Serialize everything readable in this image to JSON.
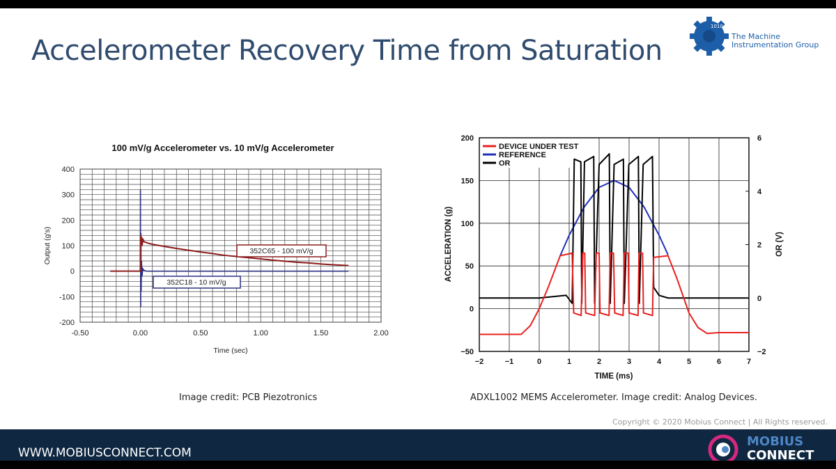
{
  "slide": {
    "title": "Accelerometer Recovery Time from Saturation",
    "logo_tmg": {
      "binary": "1010 01011",
      "line1": "The Machine",
      "line2": "Instrumentation Group"
    },
    "caption_left": "Image credit: PCB Piezotronics",
    "caption_right": "ADXL1002 MEMS Accelerometer. Image credit: Analog Devices.",
    "copyright": "Copyright © 2020 Mobius Connect | All Rights reserved.",
    "footer_url": "WWW.MOBIUSCONNECT.COM",
    "logo_mobius": {
      "line1": "MOBIUS",
      "line2": "CONNECT"
    },
    "colors": {
      "title": "#2f4b6e",
      "footer": "#0f2741",
      "mobius_ring": "#d6287f",
      "tmg_blue": "#1c5ea8"
    }
  },
  "chart_data": [
    {
      "type": "line",
      "title": "100 mV/g Accelerometer vs. 10 mV/g Accelerometer",
      "xlabel": "Time (sec)",
      "ylabel": "Output (g's)",
      "xlim": [
        -0.5,
        2.0
      ],
      "ylim": [
        -200,
        400
      ],
      "xticks": [
        "-0.50",
        "0.00",
        "0.50",
        "1.00",
        "1.50",
        "2.00"
      ],
      "yticks": [
        "400",
        "300",
        "200",
        "100",
        "0",
        "-100",
        "-200"
      ],
      "grid": true,
      "series": [
        {
          "name": "352C65 - 100 mV/g",
          "color": "#8b1a1a",
          "points": [
            [
              -0.25,
              0
            ],
            [
              0,
              0
            ],
            [
              0.003,
              140
            ],
            [
              0.006,
              95
            ],
            [
              0.01,
              135
            ],
            [
              0.015,
              100
            ],
            [
              0.02,
              128
            ],
            [
              0.03,
              115
            ],
            [
              0.05,
              112
            ],
            [
              0.1,
              105
            ],
            [
              0.2,
              97
            ],
            [
              0.3,
              89
            ],
            [
              0.4,
              82
            ],
            [
              0.5,
              75
            ],
            [
              0.6,
              69
            ],
            [
              0.7,
              62
            ],
            [
              0.85,
              55
            ],
            [
              1.0,
              48
            ],
            [
              1.1,
              43
            ],
            [
              1.2,
              39
            ],
            [
              1.3,
              35
            ],
            [
              1.4,
              32
            ],
            [
              1.5,
              28
            ],
            [
              1.6,
              25
            ],
            [
              1.73,
              22
            ]
          ]
        },
        {
          "name": "352C18 - 10 mV/g",
          "color": "#2a2f80",
          "points": [
            [
              0,
              0
            ],
            [
              0.001,
              320
            ],
            [
              0.003,
              -140
            ],
            [
              0.005,
              150
            ],
            [
              0.007,
              -80
            ],
            [
              0.01,
              40
            ],
            [
              0.015,
              -20
            ],
            [
              0.02,
              10
            ],
            [
              0.03,
              3
            ],
            [
              0.05,
              0
            ],
            [
              0.5,
              0
            ],
            [
              1.0,
              0
            ],
            [
              1.5,
              0
            ],
            [
              1.73,
              0
            ]
          ]
        }
      ]
    },
    {
      "type": "line",
      "xlabel": "TIME (ms)",
      "ylabel": "ACCELERATION (g)",
      "y2label": "OR (V)",
      "xlim": [
        -2,
        7
      ],
      "ylim": [
        -50,
        200
      ],
      "y2lim": [
        -2,
        6
      ],
      "xticks": [
        "−2",
        "−1",
        "0",
        "1",
        "2",
        "3",
        "4",
        "5",
        "6",
        "7"
      ],
      "yticks": [
        "200",
        "150",
        "100",
        "50",
        "0",
        "−50"
      ],
      "y2ticks": [
        "6",
        "4",
        "2",
        "0",
        "−2"
      ],
      "grid": true,
      "legend": "top-left",
      "series": [
        {
          "name": "DEVICE UNDER TEST",
          "color": "#e8201e",
          "axis": "left",
          "points": [
            [
              -2,
              -30
            ],
            [
              -1,
              -30
            ],
            [
              -0.6,
              -30
            ],
            [
              -0.3,
              -20
            ],
            [
              0,
              0
            ],
            [
              0.3,
              25
            ],
            [
              0.7,
              62
            ],
            [
              1.1,
              65
            ],
            [
              1.15,
              -5
            ],
            [
              1.4,
              -8
            ],
            [
              1.45,
              65
            ],
            [
              1.52,
              65
            ],
            [
              1.55,
              -5
            ],
            [
              1.85,
              -8
            ],
            [
              1.9,
              65
            ],
            [
              2.0,
              65
            ],
            [
              2.03,
              -5
            ],
            [
              2.33,
              -8
            ],
            [
              2.37,
              65
            ],
            [
              2.48,
              65
            ],
            [
              2.52,
              -5
            ],
            [
              2.8,
              -8
            ],
            [
              2.84,
              65
            ],
            [
              2.97,
              65
            ],
            [
              3.0,
              -5
            ],
            [
              3.3,
              -8
            ],
            [
              3.33,
              65
            ],
            [
              3.45,
              65
            ],
            [
              3.48,
              -5
            ],
            [
              3.78,
              -8
            ],
            [
              3.82,
              60
            ],
            [
              4.3,
              62
            ],
            [
              4.6,
              35
            ],
            [
              5.0,
              -5
            ],
            [
              5.3,
              -22
            ],
            [
              5.6,
              -29
            ],
            [
              6,
              -28
            ],
            [
              7,
              -28
            ]
          ]
        },
        {
          "name": "REFERENCE",
          "color": "#1e2fb8",
          "axis": "left",
          "points": [
            [
              0.7,
              62
            ],
            [
              1.0,
              86
            ],
            [
              1.5,
              119
            ],
            [
              2.0,
              142
            ],
            [
              2.5,
              150
            ],
            [
              3.0,
              142
            ],
            [
              3.5,
              119
            ],
            [
              4.0,
              86
            ],
            [
              4.3,
              63
            ]
          ]
        },
        {
          "name": "OR",
          "color": "#000000",
          "axis": "right",
          "points": [
            [
              -2,
              0
            ],
            [
              0,
              0
            ],
            [
              0.9,
              0.1
            ],
            [
              1.1,
              -0.2
            ],
            [
              1.17,
              5.2
            ],
            [
              1.39,
              5.1
            ],
            [
              1.42,
              -0.2
            ],
            [
              1.51,
              5.1
            ],
            [
              1.82,
              5.3
            ],
            [
              1.85,
              -0.2
            ],
            [
              2.0,
              5.0
            ],
            [
              2.34,
              5.4
            ],
            [
              2.37,
              -0.2
            ],
            [
              2.5,
              5.0
            ],
            [
              2.81,
              5.2
            ],
            [
              2.84,
              -0.2
            ],
            [
              2.99,
              5.0
            ],
            [
              3.31,
              5.3
            ],
            [
              3.34,
              -0.2
            ],
            [
              3.47,
              5.0
            ],
            [
              3.78,
              5.3
            ],
            [
              3.82,
              0.4
            ],
            [
              4.0,
              0.1
            ],
            [
              4.3,
              0
            ],
            [
              7,
              0
            ]
          ]
        }
      ]
    }
  ]
}
